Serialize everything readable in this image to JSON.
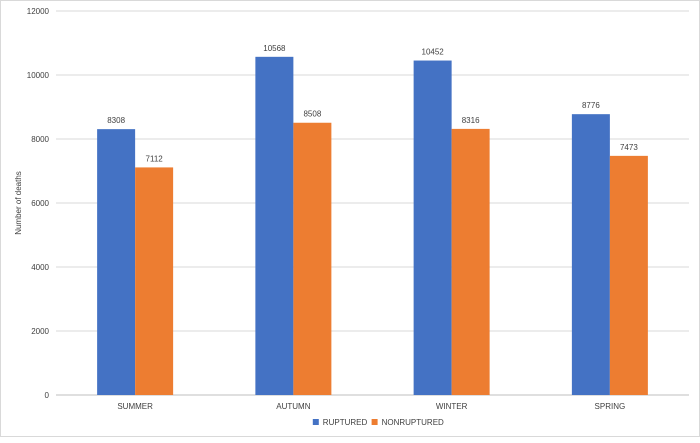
{
  "chart_data": {
    "type": "bar",
    "categories": [
      "SUMMER",
      "AUTUMN",
      "WINTER",
      "SPRING"
    ],
    "series": [
      {
        "name": "RUPTURED",
        "color": "#4472C4",
        "values": [
          8308,
          10568,
          10452,
          8776
        ]
      },
      {
        "name": "NONRUPTURED",
        "color": "#ED7D31",
        "values": [
          7112,
          8508,
          8316,
          7473
        ]
      }
    ],
    "title": "",
    "xlabel": "",
    "ylabel": "Number of deaths",
    "ylim": [
      0,
      12000
    ],
    "yticks": [
      0,
      2000,
      4000,
      6000,
      8000,
      10000,
      12000
    ],
    "grid": true,
    "legend_position": "bottom-center",
    "data_labels": true
  }
}
